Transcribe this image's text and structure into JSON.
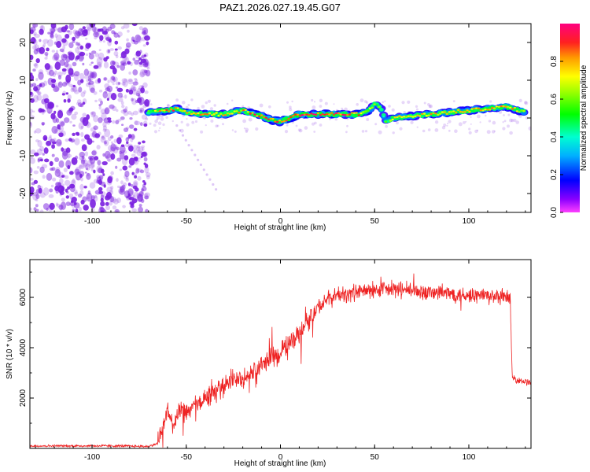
{
  "colors": {
    "snr_line": "#ee2222",
    "scatter_base": "#7a1fe0",
    "axes": "#000000",
    "background": "#ffffff"
  },
  "chart_data": [
    {
      "type": "heatmap",
      "title": "PAZ1.2026.027.19.45.G07",
      "xlabel": "Height of straight line (km)",
      "ylabel": "Frequency (Hz)",
      "xlim": [
        -133,
        133
      ],
      "ylim": [
        -25,
        25
      ],
      "xticks": [
        -100,
        -50,
        0,
        50,
        100
      ],
      "xtick_labels": [
        "-100",
        "-50",
        "0",
        "50",
        "100"
      ],
      "yticks": [
        -20,
        -10,
        0,
        10,
        20
      ],
      "ytick_labels": [
        "-20",
        "-10",
        "0",
        "10",
        "20"
      ],
      "colorbar": {
        "label": "Normalized spectral amplitude",
        "range": [
          0,
          1
        ],
        "ticks": [
          0.0,
          0.2,
          0.4,
          0.6,
          0.8
        ],
        "tick_labels": [
          "0.0",
          "0.2",
          "0.4",
          "0.6",
          "0.8"
        ],
        "colormap": "rainbow"
      },
      "noise_region_x": [
        -133,
        -70
      ],
      "signal_ridge": {
        "x": [
          -70,
          -60,
          -55,
          -50,
          -40,
          -30,
          -20,
          -10,
          -5,
          0,
          10,
          20,
          30,
          40,
          46,
          50,
          53,
          56,
          60,
          70,
          80,
          90,
          100,
          110,
          120,
          130
        ],
        "freq": [
          1.5,
          2.0,
          2.5,
          1.5,
          1.0,
          1.0,
          2.0,
          0.5,
          -0.5,
          -1.0,
          1.0,
          1.0,
          1.0,
          1.0,
          1.5,
          3.5,
          3.0,
          -1.0,
          0.0,
          0.5,
          1.0,
          1.5,
          2.0,
          2.5,
          3.0,
          1.5
        ],
        "amplitude": [
          0.55,
          0.85,
          0.8,
          0.7,
          0.75,
          0.7,
          0.75,
          0.9,
          0.85,
          0.9,
          0.95,
          0.9,
          0.85,
          0.85,
          0.7,
          0.55,
          0.5,
          0.5,
          0.65,
          0.7,
          0.75,
          0.7,
          0.75,
          0.8,
          0.75,
          0.7
        ]
      }
    },
    {
      "type": "line",
      "title": "",
      "xlabel": "Height of straight line (km)",
      "ylabel": "SNR (10 * v/v)",
      "xlim": [
        -133,
        133
      ],
      "ylim": [
        0,
        7500
      ],
      "xticks": [
        -100,
        -50,
        0,
        50,
        100
      ],
      "xtick_labels": [
        "-100",
        "-50",
        "0",
        "50",
        "100"
      ],
      "yticks": [
        2000,
        4000,
        6000
      ],
      "ytick_labels": [
        "2000",
        "4000",
        "6000"
      ],
      "series": [
        {
          "name": "SNR",
          "x": [
            -133,
            -110,
            -90,
            -70,
            -65,
            -62,
            -60,
            -57,
            -55,
            -52,
            -50,
            -45,
            -40,
            -35,
            -30,
            -25,
            -20,
            -15,
            -10,
            -5,
            0,
            5,
            10,
            15,
            20,
            25,
            30,
            35,
            40,
            45,
            50,
            55,
            60,
            65,
            70,
            80,
            90,
            100,
            110,
            115,
            120,
            122,
            123,
            125,
            130,
            133
          ],
          "values": [
            100,
            100,
            100,
            80,
            200,
            1000,
            1500,
            900,
            1200,
            1500,
            1400,
            1700,
            2000,
            2200,
            2500,
            2800,
            2700,
            3000,
            3300,
            3600,
            3800,
            4200,
            4600,
            5100,
            5600,
            5900,
            6100,
            6100,
            6200,
            6250,
            6300,
            6300,
            6300,
            6300,
            6250,
            6200,
            6150,
            6100,
            6050,
            6000,
            6000,
            5950,
            2800,
            2750,
            2650,
            2600
          ]
        }
      ]
    }
  ]
}
